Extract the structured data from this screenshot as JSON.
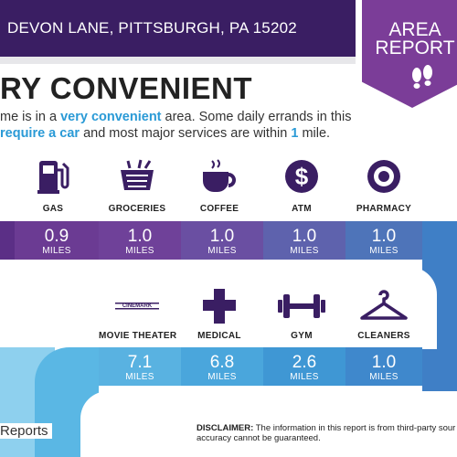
{
  "header": {
    "address": "DEVON LANE, PITTSBURGH, PA 15202"
  },
  "badge": {
    "line1": "AREA",
    "line2": "REPORT",
    "icon": "footprints-icon"
  },
  "title": "RY CONVENIENT",
  "description": {
    "part1": "me is in a ",
    "hl1": "very convenient",
    "part2": " area. Some daily errands in this",
    "part3": " ",
    "hl2": "require a car",
    "part4": " and most major services are within ",
    "hl3": "1",
    "part5": " mile."
  },
  "services_row1": [
    {
      "label": "GAS",
      "value": "0.9",
      "unit": "MILES",
      "icon": "gas-pump-icon",
      "color": "#6b3b93"
    },
    {
      "label": "GROCERIES",
      "value": "1.0",
      "unit": "MILES",
      "icon": "grocery-basket-icon",
      "color": "#6f4199"
    },
    {
      "label": "COFFEE",
      "value": "1.0",
      "unit": "MILES",
      "icon": "coffee-cup-icon",
      "color": "#6a4fa2"
    },
    {
      "label": "ATM",
      "value": "1.0",
      "unit": "MILES",
      "icon": "atm-dollar-icon",
      "color": "#5e62ad"
    },
    {
      "label": "PHARMACY",
      "value": "1.0",
      "unit": "MILES",
      "icon": "pharmacy-target-icon",
      "color": "#4e74b9"
    }
  ],
  "services_row2": [
    {
      "label": "MOVIE THEATER",
      "value": "7.1",
      "unit": "MILES",
      "icon": "cinema-logo-icon",
      "logo_text": "CINEMARK",
      "color": "#59b2e1"
    },
    {
      "label": "MEDICAL",
      "value": "6.8",
      "unit": "MILES",
      "icon": "medical-cross-icon",
      "color": "#4aa6dc"
    },
    {
      "label": "GYM",
      "value": "2.6",
      "unit": "MILES",
      "icon": "dumbbell-icon",
      "color": "#3f97d4"
    },
    {
      "label": "CLEANERS",
      "value": "1.0",
      "unit": "MILES",
      "icon": "hanger-icon",
      "color": "#3f88cc"
    }
  ],
  "footer": {
    "brand": "Reports",
    "disclaimer_label": "DISCLAIMER:",
    "disclaimer_text": " The information in this report is from third-party sour",
    "disclaimer_text2": "accuracy cannot be guaranteed."
  }
}
